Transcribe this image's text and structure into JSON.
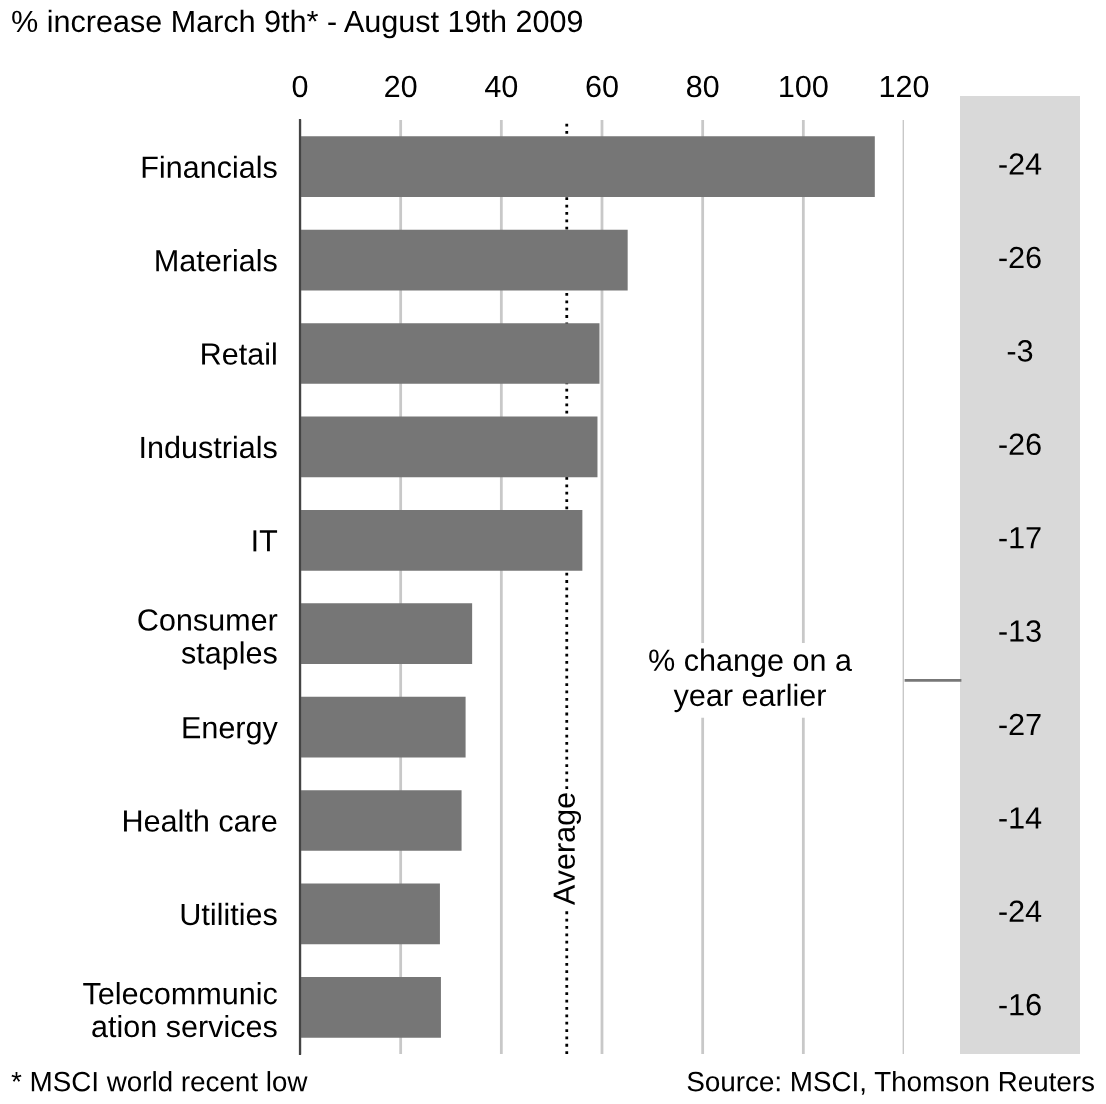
{
  "chart_data": {
    "type": "bar",
    "orientation": "horizontal",
    "title": "% increase March 9th* - August 19th 2009",
    "categories": [
      "Financials",
      "Materials",
      "Retail",
      "Industrials",
      "IT",
      "Consumer\nstaples",
      "Energy",
      "Health care",
      "Utilities",
      "Telecommunic\nation services"
    ],
    "values": [
      114.2,
      65.1,
      59.5,
      59.1,
      56.1,
      34.2,
      32.9,
      32.1,
      27.8,
      28.0
    ],
    "color": "#767676",
    "xlim": [
      0,
      120
    ],
    "xticks": [
      0,
      20,
      40,
      60,
      80,
      100,
      120
    ],
    "grid": "x",
    "ref_lines": [
      {
        "axis": "x",
        "value": 53,
        "label": "Average",
        "color": "#000000",
        "line_style": "dotted"
      }
    ],
    "annotations": [
      "% change on a year earlier",
      "-24",
      "-26",
      "-3",
      "-26",
      "-17",
      "-13",
      "-27",
      "-14",
      "-24",
      "-16",
      "* MSCI world recent low",
      "Source: MSCI, Thomson Reuters"
    ]
  }
}
